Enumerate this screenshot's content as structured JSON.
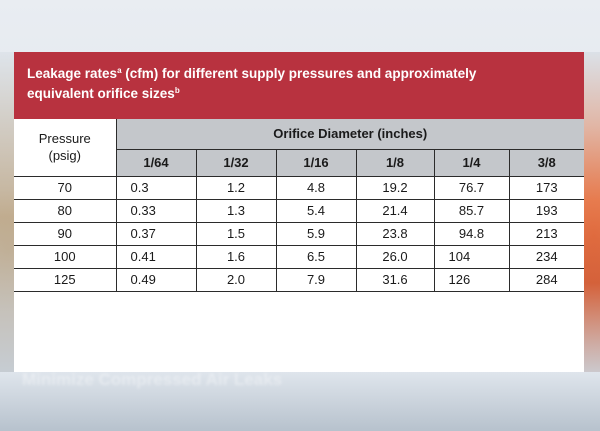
{
  "title": {
    "line1_pre": "Leakage rates",
    "line1_sup": "a",
    "line1_post": " (cfm) for different supply pressures and approximately",
    "line2_pre": "equivalent orifice sizes",
    "line2_sup": "b"
  },
  "table": {
    "pressure_header_line1": "Pressure",
    "pressure_header_line2": "(psig)",
    "group_header": "Orifice Diameter (inches)",
    "columns": [
      "1/64",
      "1/32",
      "1/16",
      "1/8",
      "1/4",
      "3/8"
    ],
    "rows": [
      {
        "pressure": "70",
        "values": [
          "0.3",
          "1.2",
          "4.8",
          "19.2",
          "76.7",
          "173"
        ]
      },
      {
        "pressure": "80",
        "values": [
          "0.33",
          "1.3",
          "5.4",
          "21.4",
          "85.7",
          "193"
        ]
      },
      {
        "pressure": "90",
        "values": [
          "0.37",
          "1.5",
          "5.9",
          "23.8",
          "94.8",
          "213"
        ]
      },
      {
        "pressure": "100",
        "values": [
          "0.41",
          "1.6",
          "6.5",
          "26.0",
          "104",
          "234"
        ]
      },
      {
        "pressure": "125",
        "values": [
          "0.49",
          "2.0",
          "7.9",
          "31.6",
          "126",
          "284"
        ]
      }
    ]
  },
  "background_caption": "Minimize Compressed Air Leaks",
  "colors": {
    "header_red": "#b8323f",
    "subheader_gray": "#c4c7cb"
  }
}
